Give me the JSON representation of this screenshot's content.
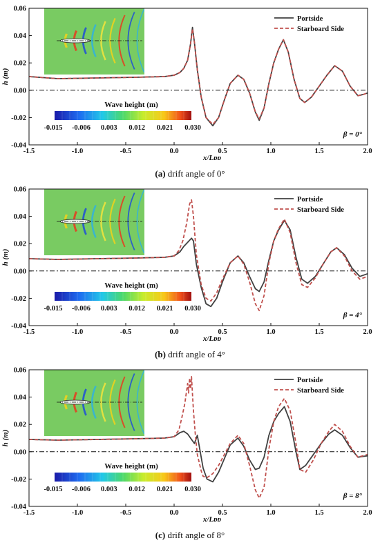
{
  "chart_data": [
    {
      "type": "line",
      "caption_tag": "(a)",
      "caption_text": "drift angle of 0°",
      "beta_label": "β = 0°",
      "xlabel": "x/Lpp",
      "ylabel": "h (m)",
      "xlim": [
        -1.5,
        2.0
      ],
      "ylim": [
        -0.04,
        0.06
      ],
      "xticks": [
        "-1.5",
        "-1.0",
        "-0.5",
        "0.0",
        "0.5",
        "1.0",
        "1.5",
        "2.0"
      ],
      "yticks": [
        "0.06",
        "0.04",
        "0.02",
        "0.00",
        "-0.02",
        "-0.04"
      ],
      "legend_position": "top-right",
      "colorbar_title": "Wave height (m)",
      "colorbar_ticks": [
        "-0.015",
        "-0.006",
        "0.003",
        "0.012",
        "0.021",
        "0.030"
      ],
      "series": [
        {
          "name": "Portside",
          "color": "#404040",
          "style": "solid",
          "x": [
            -1.5,
            -1.2,
            -0.8,
            -0.4,
            -0.1,
            0.0,
            0.06,
            0.1,
            0.14,
            0.17,
            0.19,
            0.21,
            0.24,
            0.28,
            0.33,
            0.4,
            0.46,
            0.52,
            0.58,
            0.66,
            0.72,
            0.78,
            0.84,
            0.88,
            0.93,
            0.98,
            1.03,
            1.08,
            1.13,
            1.18,
            1.24,
            1.3,
            1.35,
            1.42,
            1.5,
            1.58,
            1.66,
            1.74,
            1.82,
            1.9,
            1.96,
            2.0
          ],
          "y": [
            0.01,
            0.0085,
            0.009,
            0.0095,
            0.01,
            0.011,
            0.013,
            0.016,
            0.022,
            0.034,
            0.046,
            0.035,
            0.015,
            -0.005,
            -0.02,
            -0.026,
            -0.02,
            -0.007,
            0.005,
            0.011,
            0.008,
            -0.002,
            -0.016,
            -0.022,
            -0.013,
            0.005,
            0.02,
            0.03,
            0.037,
            0.028,
            0.008,
            -0.006,
            -0.009,
            -0.005,
            0.003,
            0.011,
            0.018,
            0.014,
            0.003,
            -0.004,
            -0.003,
            -0.002
          ]
        },
        {
          "name": "Starboard Side",
          "color": "#c0504d",
          "style": "dashed",
          "x": [
            -1.5,
            -1.2,
            -0.8,
            -0.4,
            -0.1,
            0.0,
            0.06,
            0.1,
            0.14,
            0.17,
            0.19,
            0.21,
            0.24,
            0.28,
            0.33,
            0.4,
            0.46,
            0.52,
            0.58,
            0.66,
            0.72,
            0.78,
            0.84,
            0.88,
            0.93,
            0.98,
            1.03,
            1.08,
            1.13,
            1.18,
            1.24,
            1.3,
            1.35,
            1.42,
            1.5,
            1.58,
            1.66,
            1.74,
            1.82,
            1.9,
            1.96,
            2.0
          ],
          "y": [
            0.01,
            0.0085,
            0.009,
            0.0095,
            0.01,
            0.011,
            0.013,
            0.016,
            0.022,
            0.034,
            0.045,
            0.035,
            0.015,
            -0.005,
            -0.02,
            -0.025,
            -0.02,
            -0.007,
            0.005,
            0.011,
            0.008,
            -0.002,
            -0.016,
            -0.021,
            -0.013,
            0.005,
            0.02,
            0.03,
            0.037,
            0.028,
            0.008,
            -0.006,
            -0.009,
            -0.005,
            0.003,
            0.011,
            0.018,
            0.014,
            0.003,
            -0.004,
            -0.003,
            -0.002
          ]
        }
      ]
    },
    {
      "type": "line",
      "caption_tag": "(b)",
      "caption_text": "drift angle of 4°",
      "beta_label": "β = 4°",
      "xlabel": "x/Lpp",
      "ylabel": "h (m)",
      "xlim": [
        -1.5,
        2.0
      ],
      "ylim": [
        -0.04,
        0.06
      ],
      "xticks": [
        "-1.5",
        "-1.0",
        "-0.5",
        "0.0",
        "0.5",
        "1.0",
        "1.5",
        "2.0"
      ],
      "yticks": [
        "0.06",
        "0.04",
        "0.02",
        "0.00",
        "-0.02",
        "-0.04"
      ],
      "legend_position": "top-right",
      "colorbar_title": "Wave height (m)",
      "colorbar_ticks": [
        "-0.015",
        "-0.006",
        "0.003",
        "0.012",
        "0.021",
        "0.030"
      ],
      "series": [
        {
          "name": "Portside",
          "color": "#404040",
          "style": "solid",
          "x": [
            -1.5,
            -1.2,
            -0.8,
            -0.4,
            -0.1,
            0.0,
            0.06,
            0.1,
            0.14,
            0.18,
            0.2,
            0.23,
            0.28,
            0.33,
            0.38,
            0.44,
            0.5,
            0.58,
            0.66,
            0.72,
            0.78,
            0.84,
            0.88,
            0.93,
            0.98,
            1.03,
            1.08,
            1.14,
            1.2,
            1.26,
            1.32,
            1.38,
            1.46,
            1.54,
            1.62,
            1.68,
            1.76,
            1.84,
            1.92,
            2.0
          ],
          "y": [
            0.009,
            0.0085,
            0.009,
            0.0095,
            0.01,
            0.011,
            0.014,
            0.018,
            0.021,
            0.024,
            0.022,
            0.005,
            -0.012,
            -0.024,
            -0.026,
            -0.02,
            -0.008,
            0.006,
            0.011,
            0.006,
            -0.004,
            -0.013,
            -0.015,
            -0.008,
            0.008,
            0.022,
            0.03,
            0.037,
            0.03,
            0.01,
            -0.006,
            -0.009,
            -0.004,
            0.005,
            0.014,
            0.017,
            0.012,
            0.002,
            -0.004,
            -0.002
          ]
        },
        {
          "name": "Starboard Side",
          "color": "#c0504d",
          "style": "dashed",
          "x": [
            -1.5,
            -1.2,
            -0.8,
            -0.4,
            -0.1,
            0.0,
            0.05,
            0.09,
            0.13,
            0.16,
            0.18,
            0.2,
            0.23,
            0.28,
            0.33,
            0.38,
            0.44,
            0.5,
            0.58,
            0.66,
            0.72,
            0.78,
            0.84,
            0.88,
            0.93,
            0.98,
            1.03,
            1.08,
            1.14,
            1.2,
            1.26,
            1.32,
            1.38,
            1.46,
            1.54,
            1.62,
            1.68,
            1.76,
            1.84,
            1.92,
            2.0
          ],
          "y": [
            0.009,
            0.0085,
            0.009,
            0.0095,
            0.01,
            0.011,
            0.015,
            0.022,
            0.035,
            0.049,
            0.052,
            0.04,
            0.012,
            -0.01,
            -0.02,
            -0.022,
            -0.016,
            -0.006,
            0.006,
            0.011,
            0.005,
            -0.008,
            -0.024,
            -0.029,
            -0.018,
            0.006,
            0.022,
            0.031,
            0.038,
            0.028,
            0.006,
            -0.01,
            -0.012,
            -0.005,
            0.005,
            0.014,
            0.017,
            0.011,
            0.0,
            -0.006,
            -0.004
          ]
        }
      ]
    },
    {
      "type": "line",
      "caption_tag": "(c)",
      "caption_text": "drift angle of 8°",
      "beta_label": "β = 8°",
      "xlabel": "x/Lpp",
      "ylabel": "h (m)",
      "xlim": [
        -1.5,
        2.0
      ],
      "ylim": [
        -0.04,
        0.06
      ],
      "xticks": [
        "-1.5",
        "-1.0",
        "-0.5",
        "0.0",
        "0.5",
        "1.0",
        "1.5",
        "2.0"
      ],
      "yticks": [
        "0.06",
        "0.04",
        "0.02",
        "0.00",
        "-0.02",
        "-0.04"
      ],
      "legend_position": "top-right",
      "colorbar_title": "Wave height (m)",
      "colorbar_ticks": [
        "-0.015",
        "-0.006",
        "0.003",
        "0.012",
        "0.021",
        "0.030"
      ],
      "series": [
        {
          "name": "Portside",
          "color": "#404040",
          "style": "solid",
          "x": [
            -1.5,
            -1.2,
            -0.8,
            -0.4,
            -0.1,
            0.0,
            0.06,
            0.1,
            0.14,
            0.18,
            0.21,
            0.24,
            0.27,
            0.3,
            0.34,
            0.4,
            0.46,
            0.52,
            0.58,
            0.66,
            0.72,
            0.78,
            0.84,
            0.88,
            0.93,
            0.98,
            1.03,
            1.08,
            1.14,
            1.2,
            1.26,
            1.3,
            1.36,
            1.44,
            1.52,
            1.6,
            1.66,
            1.74,
            1.82,
            1.9,
            2.0
          ],
          "y": [
            0.009,
            0.0085,
            0.009,
            0.0095,
            0.01,
            0.011,
            0.014,
            0.015,
            0.013,
            0.009,
            0.006,
            0.012,
            0.0,
            -0.012,
            -0.02,
            -0.022,
            -0.015,
            -0.005,
            0.005,
            0.01,
            0.004,
            -0.006,
            -0.013,
            -0.012,
            -0.004,
            0.012,
            0.022,
            0.028,
            0.033,
            0.022,
            0.0,
            -0.013,
            -0.01,
            -0.002,
            0.006,
            0.013,
            0.016,
            0.012,
            0.003,
            -0.004,
            -0.003
          ]
        },
        {
          "name": "Starboard Side",
          "color": "#c0504d",
          "style": "dashed",
          "x": [
            -1.5,
            -1.2,
            -0.8,
            -0.4,
            -0.1,
            0.0,
            0.05,
            0.08,
            0.11,
            0.13,
            0.14,
            0.15,
            0.16,
            0.17,
            0.18,
            0.19,
            0.2,
            0.22,
            0.24,
            0.26,
            0.28,
            0.3,
            0.34,
            0.4,
            0.46,
            0.52,
            0.58,
            0.66,
            0.72,
            0.78,
            0.84,
            0.88,
            0.93,
            0.98,
            1.03,
            1.08,
            1.14,
            1.2,
            1.26,
            1.3,
            1.36,
            1.44,
            1.52,
            1.6,
            1.66,
            1.74,
            1.82,
            1.9,
            2.0
          ],
          "y": [
            0.009,
            0.0085,
            0.009,
            0.0095,
            0.01,
            0.011,
            0.016,
            0.025,
            0.035,
            0.045,
            0.05,
            0.043,
            0.054,
            0.046,
            0.055,
            0.042,
            0.03,
            0.012,
            -0.002,
            -0.008,
            -0.014,
            -0.018,
            -0.019,
            -0.016,
            -0.01,
            -0.002,
            0.006,
            0.012,
            0.006,
            -0.01,
            -0.028,
            -0.034,
            -0.026,
            0.002,
            0.022,
            0.033,
            0.039,
            0.03,
            0.006,
            -0.013,
            -0.015,
            -0.006,
            0.006,
            0.015,
            0.02,
            0.015,
            0.004,
            -0.004,
            -0.002
          ]
        }
      ]
    }
  ]
}
